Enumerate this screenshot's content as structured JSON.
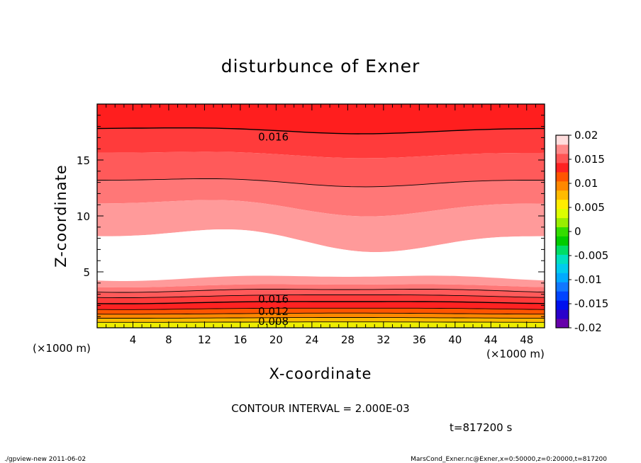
{
  "chart_data": {
    "type": "contour",
    "title": "disturbunce of Exner",
    "xlabel": "X-coordinate",
    "ylabel": "Z-coordinate",
    "x_unit": "(×1000 m)",
    "z_unit": "(×1000 m)",
    "xlim": [
      0,
      50
    ],
    "ylim": [
      0,
      20
    ],
    "x_ticks": [
      4,
      8,
      12,
      16,
      20,
      24,
      28,
      32,
      36,
      40,
      44,
      48
    ],
    "y_ticks": [
      5,
      10,
      15
    ],
    "contour_interval_text": "CONTOUR INTERVAL = 2.000E-03",
    "time_text": "t=817200 s",
    "contour_labels": [
      {
        "text": "0.016",
        "x": 18,
        "z": 17.0
      },
      {
        "text": "0.016",
        "x": 18,
        "z": 2.5
      },
      {
        "text": "0.012",
        "x": 18,
        "z": 1.4
      },
      {
        "text": "0.008",
        "x": 18,
        "z": 0.5
      }
    ],
    "colorbar": {
      "labels": [
        "0.02",
        "0.015",
        "0.01",
        "0.005",
        "0",
        "-0.005",
        "-0.01",
        "-0.015",
        "-0.02"
      ],
      "levels": [
        -0.02,
        -0.018,
        -0.016,
        -0.014,
        -0.012,
        -0.01,
        -0.008,
        -0.006,
        -0.004,
        -0.002,
        0,
        0.002,
        0.004,
        0.006,
        0.008,
        0.01,
        0.012,
        0.014,
        0.016,
        0.018,
        0.02
      ],
      "colors": [
        "#6600aa",
        "#2a00cc",
        "#0011ee",
        "#0044ff",
        "#1177ff",
        "#00aaff",
        "#00ccee",
        "#00e0c0",
        "#00dd66",
        "#00cc00",
        "#33dd00",
        "#99ee00",
        "#ddff00",
        "#ffee00",
        "#ffbb00",
        "#ff8800",
        "#ff5500",
        "#ff2222",
        "#ff5555",
        "#ff8888",
        "#ffdddd"
      ]
    }
  },
  "footer": {
    "left": "./gpview-new   2011-06-02",
    "right": "MarsCond_Exner.nc@Exner,x=0:50000,z=0:20000,t=817200"
  }
}
